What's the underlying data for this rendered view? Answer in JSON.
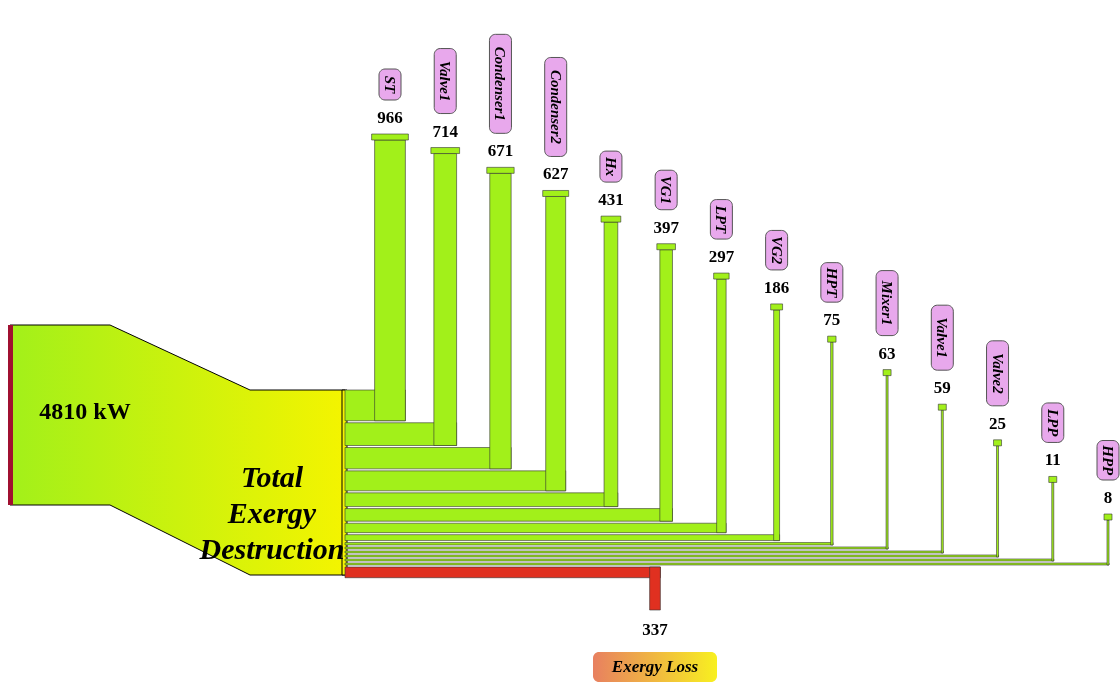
{
  "chart_data": {
    "type": "other",
    "title": "Total Exergy Destruction",
    "data_labels": true,
    "annotations": [
      "4810 kW"
    ],
    "categories": [
      "ST",
      "Valve1",
      "Condenser1",
      "Condenser2",
      "Hx",
      "VG1",
      "LPT",
      "VG2",
      "HPT",
      "Mixer1",
      "Valve1",
      "Valve2",
      "LPP",
      "HPP",
      "Exergy Loss"
    ],
    "values": [
      966,
      714,
      671,
      627,
      431,
      397,
      297,
      186,
      75,
      63,
      59,
      25,
      11,
      8,
      337
    ]
  }
}
